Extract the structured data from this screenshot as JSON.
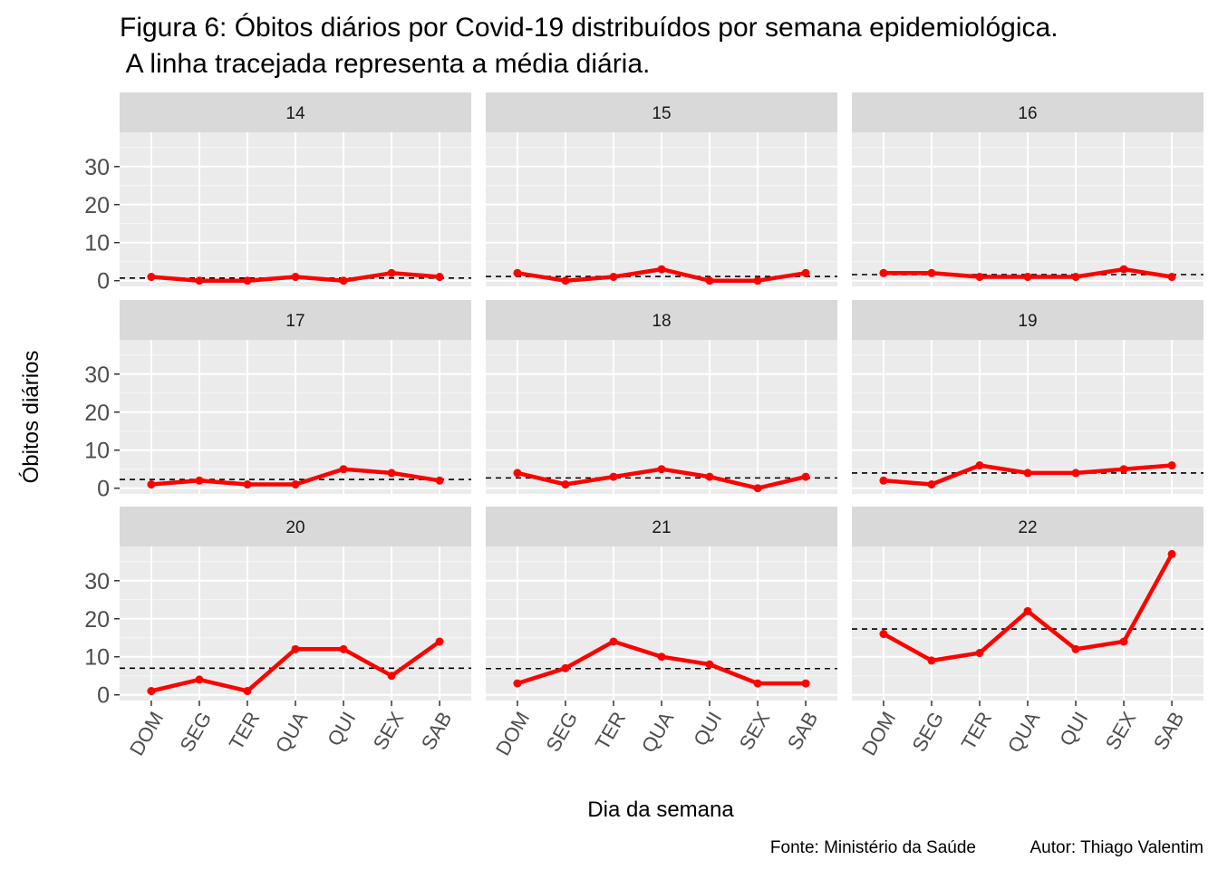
{
  "chart_data": {
    "type": "line",
    "title_line1": "Figura 6: Óbitos diários por Covid-19 distribuídos por semana epidemiológica.",
    "title_line2": " A linha tracejada representa a média diária.",
    "xlabel": "Dia da semana",
    "ylabel": "Óbitos diários",
    "caption_source": "Fonte: Ministério da Saúde",
    "caption_author": "Autor: Thiago Valentim",
    "categories": [
      "DOM",
      "SEG",
      "TER",
      "QUA",
      "QUI",
      "SEX",
      "SAB"
    ],
    "yticks": [
      0,
      10,
      20,
      30
    ],
    "ylim": [
      -1.5,
      39
    ],
    "line_color": "#ff0000",
    "mean_line_color": "#000000",
    "panel_background": "#ebebeb",
    "strip_background": "#d9d9d9",
    "grid": true,
    "facets": [
      {
        "week": "14",
        "values": [
          1,
          0,
          0,
          1,
          0,
          2,
          1
        ],
        "mean": 0.7
      },
      {
        "week": "15",
        "values": [
          2,
          0,
          1,
          3,
          0,
          0,
          2
        ],
        "mean": 1.1
      },
      {
        "week": "16",
        "values": [
          2,
          2,
          1,
          1,
          1,
          3,
          1
        ],
        "mean": 1.6
      },
      {
        "week": "17",
        "values": [
          1,
          2,
          1,
          1,
          5,
          4,
          2
        ],
        "mean": 2.3
      },
      {
        "week": "18",
        "values": [
          4,
          1,
          3,
          5,
          3,
          0,
          3
        ],
        "mean": 2.7
      },
      {
        "week": "19",
        "values": [
          2,
          1,
          6,
          4,
          4,
          5,
          6
        ],
        "mean": 4.0
      },
      {
        "week": "20",
        "values": [
          1,
          4,
          1,
          12,
          12,
          5,
          14
        ],
        "mean": 7.0
      },
      {
        "week": "21",
        "values": [
          3,
          7,
          14,
          10,
          8,
          3,
          3
        ],
        "mean": 6.9
      },
      {
        "week": "22",
        "values": [
          16,
          9,
          11,
          22,
          12,
          14,
          37
        ],
        "mean": 17.3
      }
    ]
  }
}
